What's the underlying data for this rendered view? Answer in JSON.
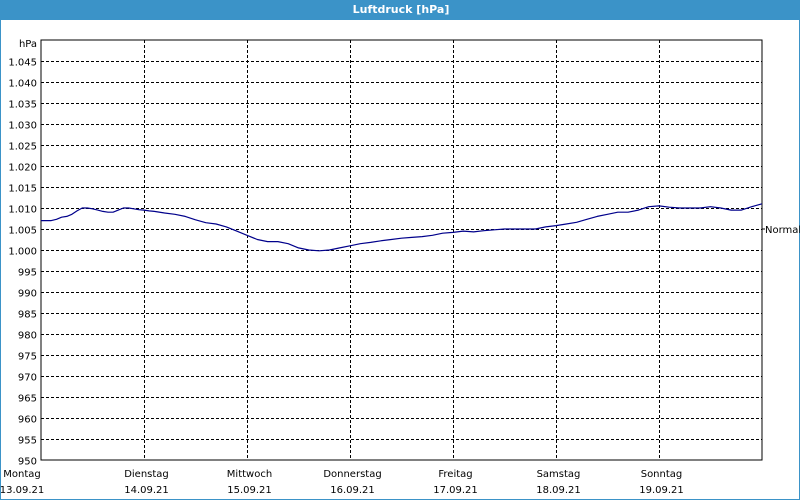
{
  "title": "Luftdruck [hPa]",
  "chart_data": {
    "type": "line",
    "title": "Luftdruck [hPa]",
    "ylabel": "hPa",
    "ylim": [
      950,
      1050
    ],
    "yticks": [
      {
        "value": 950,
        "label": "950"
      },
      {
        "value": 955,
        "label": "955"
      },
      {
        "value": 960,
        "label": "960"
      },
      {
        "value": 965,
        "label": "965"
      },
      {
        "value": 970,
        "label": "970"
      },
      {
        "value": 975,
        "label": "975"
      },
      {
        "value": 980,
        "label": "980"
      },
      {
        "value": 985,
        "label": "985"
      },
      {
        "value": 990,
        "label": "990"
      },
      {
        "value": 995,
        "label": "995"
      },
      {
        "value": 1000,
        "label": "1.000"
      },
      {
        "value": 1005,
        "label": "1.005"
      },
      {
        "value": 1010,
        "label": "1.010"
      },
      {
        "value": 1015,
        "label": "1.015"
      },
      {
        "value": 1020,
        "label": "1.020"
      },
      {
        "value": 1025,
        "label": "1.025"
      },
      {
        "value": 1030,
        "label": "1.030"
      },
      {
        "value": 1035,
        "label": "1.035"
      },
      {
        "value": 1040,
        "label": "1.040"
      },
      {
        "value": 1045,
        "label": "1.045"
      }
    ],
    "xlim": [
      0,
      7
    ],
    "xticks": [
      {
        "value": 0,
        "day": "Montag",
        "date": "13.09.21"
      },
      {
        "value": 1,
        "day": "Dienstag",
        "date": "14.09.21"
      },
      {
        "value": 2,
        "day": "Mittwoch",
        "date": "15.09.21"
      },
      {
        "value": 3,
        "day": "Donnerstag",
        "date": "16.09.21"
      },
      {
        "value": 4,
        "day": "Freitag",
        "date": "17.09.21"
      },
      {
        "value": 5,
        "day": "Samstag",
        "date": "18.09.21"
      },
      {
        "value": 6,
        "day": "Sonntag",
        "date": "19.09.21"
      }
    ],
    "grid": true,
    "reference": {
      "label": "Normal",
      "value": 1005
    },
    "series": [
      {
        "color": "#00008b",
        "x": [
          0,
          0.1,
          0.15,
          0.2,
          0.25,
          0.3,
          0.35,
          0.4,
          0.45,
          0.5,
          0.55,
          0.6,
          0.65,
          0.7,
          0.75,
          0.8,
          0.85,
          0.9,
          0.95,
          1.0,
          1.05,
          1.1,
          1.2,
          1.3,
          1.4,
          1.5,
          1.6,
          1.7,
          1.8,
          1.9,
          2.0,
          2.1,
          2.2,
          2.3,
          2.4,
          2.5,
          2.6,
          2.7,
          2.8,
          2.9,
          3.0,
          3.1,
          3.2,
          3.3,
          3.4,
          3.5,
          3.6,
          3.7,
          3.8,
          3.9,
          4.0,
          4.1,
          4.2,
          4.3,
          4.4,
          4.5,
          4.6,
          4.7,
          4.8,
          4.9,
          5.0,
          5.1,
          5.2,
          5.3,
          5.4,
          5.5,
          5.6,
          5.7,
          5.8,
          5.9,
          6.0,
          6.1,
          6.2,
          6.3,
          6.4,
          6.5,
          6.6,
          6.7,
          6.8,
          6.9,
          7.0
        ],
        "values": [
          1007,
          1007,
          1007.3,
          1007.8,
          1008,
          1008.5,
          1009.3,
          1010,
          1010,
          1009.8,
          1009.5,
          1009.2,
          1009,
          1009,
          1009.5,
          1010,
          1010,
          1009.8,
          1009.6,
          1009.5,
          1009.3,
          1009.2,
          1008.8,
          1008.5,
          1008,
          1007.2,
          1006.5,
          1006.2,
          1005.5,
          1004.5,
          1003.5,
          1002.5,
          1002,
          1002,
          1001.5,
          1000.5,
          1000,
          999.8,
          1000,
          1000.5,
          1001,
          1001.5,
          1001.8,
          1002.2,
          1002.5,
          1002.8,
          1003,
          1003.2,
          1003.5,
          1004,
          1004.2,
          1004.5,
          1004.3,
          1004.6,
          1004.8,
          1005,
          1005,
          1005,
          1005,
          1005.5,
          1005.8,
          1006.2,
          1006.6,
          1007.3,
          1008,
          1008.5,
          1009,
          1009,
          1009.5,
          1010.3,
          1010.5,
          1010.2,
          1010,
          1010,
          1010,
          1010.3,
          1010,
          1009.5,
          1009.5,
          1010.3,
          1011
        ]
      }
    ]
  }
}
